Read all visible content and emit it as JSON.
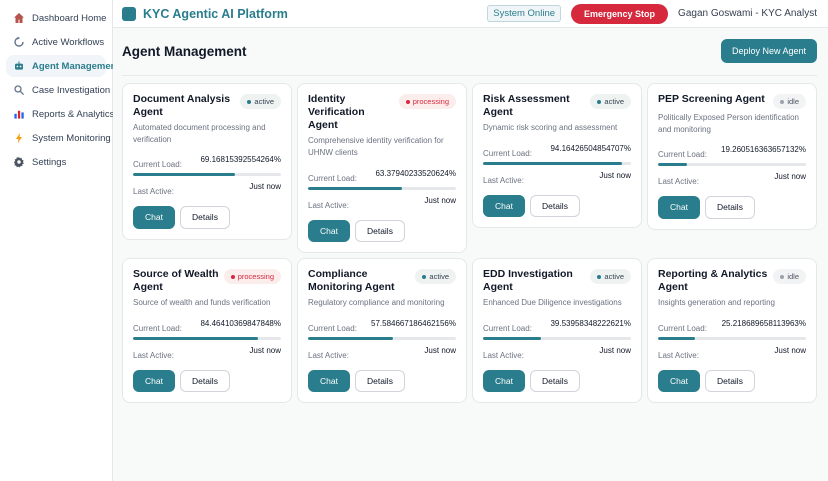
{
  "header": {
    "app_title": "KYC Agentic AI Platform",
    "system_status": "System Online",
    "emergency_button": "Emergency Stop",
    "user": "Gagan Goswami - KYC Analyst"
  },
  "sidebar": {
    "items": [
      {
        "id": "dashboard-home",
        "icon": "home-icon",
        "label": "Dashboard Home",
        "active": false
      },
      {
        "id": "active-workflows",
        "icon": "workflow-icon",
        "label": "Active Workflows",
        "active": false
      },
      {
        "id": "agent-management",
        "icon": "robot-icon",
        "label": "Agent Management",
        "active": true
      },
      {
        "id": "case-investigation",
        "icon": "search-icon",
        "label": "Case Investigation",
        "active": false
      },
      {
        "id": "reports-analytics",
        "icon": "bar-chart-icon",
        "label": "Reports & Analytics",
        "active": false
      },
      {
        "id": "system-monitoring",
        "icon": "lightning-icon",
        "label": "System Monitoring",
        "active": false
      },
      {
        "id": "settings",
        "icon": "gear-icon",
        "label": "Settings",
        "active": false
      }
    ]
  },
  "page": {
    "title": "Agent Management",
    "deploy_button": "Deploy New Agent"
  },
  "labels": {
    "current_load": "Current Load:",
    "last_active": "Last Active:",
    "chat": "Chat",
    "details": "Details"
  },
  "agents": [
    {
      "name": "Document Analysis Agent",
      "status": "active",
      "description": "Automated document processing and verification",
      "load": "69.16815392554264%",
      "load_pct": 69.2,
      "last_active": "Just now"
    },
    {
      "name": "Identity Verification Agent",
      "status": "processing",
      "description": "Comprehensive identity verification for UHNW clients",
      "load": "63.37940233520624%",
      "load_pct": 63.4,
      "last_active": "Just now"
    },
    {
      "name": "Risk Assessment Agent",
      "status": "active",
      "description": "Dynamic risk scoring and assessment",
      "load": "94.16426504854707%",
      "load_pct": 94.2,
      "last_active": "Just now"
    },
    {
      "name": "PEP Screening Agent",
      "status": "idle",
      "description": "Politically Exposed Person identification and monitoring",
      "load": "19.260516363657132%",
      "load_pct": 19.3,
      "last_active": "Just now"
    },
    {
      "name": "Source of Wealth Agent",
      "status": "processing",
      "description": "Source of wealth and funds verification",
      "load": "84.46410369847848%",
      "load_pct": 84.5,
      "last_active": "Just now"
    },
    {
      "name": "Compliance Monitoring Agent",
      "status": "active",
      "description": "Regulatory compliance and monitoring",
      "load": "57.584667186462156%",
      "load_pct": 57.6,
      "last_active": "Just now"
    },
    {
      "name": "EDD Investigation Agent",
      "status": "active",
      "description": "Enhanced Due Diligence investigations",
      "load": "39.53958348222621%",
      "load_pct": 39.5,
      "last_active": "Just now"
    },
    {
      "name": "Reporting & Analytics Agent",
      "status": "idle",
      "description": "Insights generation and reporting",
      "load": "25.218689658113963%",
      "load_pct": 25.2,
      "last_active": "Just now"
    }
  ],
  "colors": {
    "accent_teal": "#2a7d8c",
    "danger_red": "#d6293e",
    "status_active_dot": "#2a7d8c",
    "status_processing_dot": "#d6293e",
    "status_idle_dot": "#9ca3af",
    "main_background": "#f7faf8"
  }
}
